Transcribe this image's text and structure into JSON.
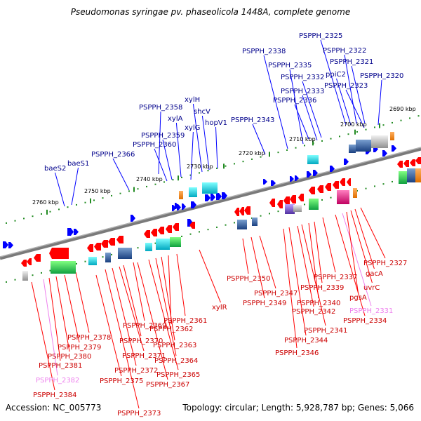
{
  "title": "Pseudomonas syringae pv. phaseolicola 1448A, complete genome",
  "footer": {
    "accession": "Accession: NC_005773",
    "summary": "Topology: circular; Length: 5,928,787 bp; Genes: 5,066"
  },
  "scale_labels": [
    "2690 kbp",
    "2700 kbp",
    "2710 kbp",
    "2720 kbp",
    "2730 kbp",
    "2740 kbp",
    "2750 kbp",
    "2760 kbp"
  ],
  "colors": {
    "forward_gene": "#0000ff",
    "reverse_gene": "#ff0000",
    "forward_label": "#00008b",
    "reverse_label": "#cc0000",
    "pseudo_label": "#ee82ee",
    "backbone": "#808080",
    "tick": "#228b22"
  },
  "forward_labels": [
    "baeS2",
    "baeS1",
    "PSPPH_2366",
    "PSPPH_2360",
    "PSPPH_2359",
    "PSPPH_2358",
    "xylA",
    "xylG",
    "xylH",
    "shcV",
    "hopV1",
    "PSPPH_2343",
    "PSPPH_2338",
    "PSPPH_2336",
    "PSPPH_2335",
    "PSPPH_2333",
    "PSPPH_2332",
    "PSPPH_2325",
    "PSPPH_2323",
    "PSPPH_2322",
    "PSPPH_2321",
    "ppiC2",
    "PSPPH_2320"
  ],
  "reverse_labels": [
    "PSPPH_2384",
    "PSPPH_2382",
    "PSPPH_2381",
    "PSPPH_2380",
    "PSPPH_2379",
    "PSPPH_2378",
    "PSPPH_2375",
    "PSPPH_2373",
    "PSPPH_2372",
    "PSPPH_2371",
    "PSPPH_2370",
    "PSPPH_2369",
    "PSPPH_2367",
    "PSPPH_2365",
    "PSPPH_2364",
    "PSPPH_2363",
    "PSPPH_2362",
    "PSPPH_2361",
    "xylR",
    "PSPPH_2350",
    "PSPPH_2349",
    "PSPPH_2347",
    "PSPPH_2346",
    "PSPPH_2344",
    "PSPPH_2342",
    "PSPPH_2341",
    "PSPPH_2340",
    "PSPPH_2339",
    "PSPPH_2337",
    "PSPPH_2334",
    "PSPPH_2331",
    "pgsA",
    "uvrC",
    "gacA",
    "PSPPH_2327"
  ]
}
